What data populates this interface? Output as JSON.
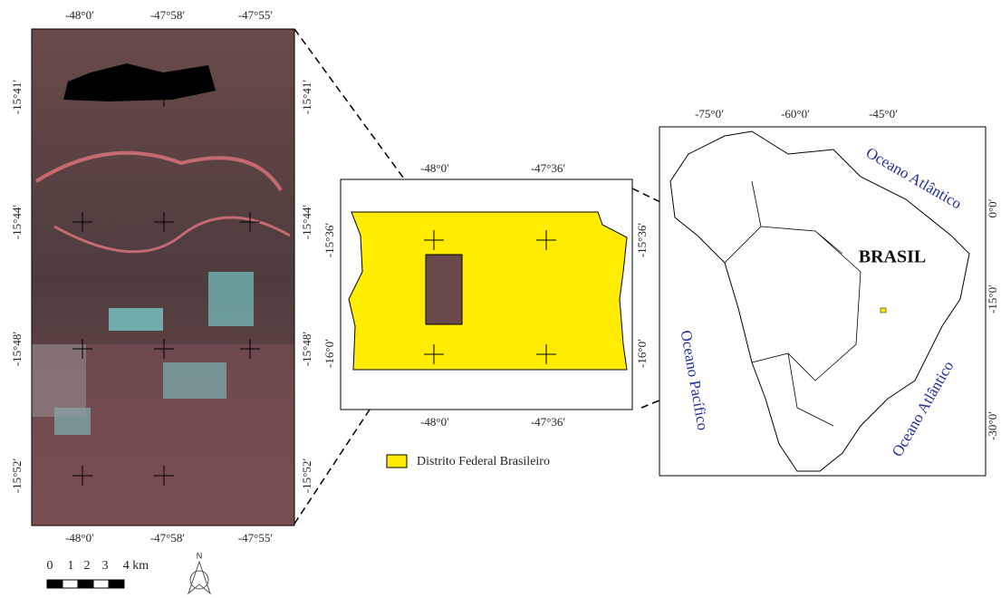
{
  "satellite_panel": {
    "top_labels": [
      "-48°0′",
      "-47°58′",
      "-47°55′"
    ],
    "bottom_labels": [
      "-48°0′",
      "-47°58′",
      "-47°55′"
    ],
    "left_labels": [
      "-15°41′",
      "-15°44′",
      "-15°48′",
      "-15°52′"
    ],
    "right_labels": [
      "-15°41′",
      "-15°44′",
      "-15°48′",
      "-15°52′"
    ]
  },
  "scale_bar": {
    "labels": [
      "0",
      "1",
      "2",
      "3",
      "4 km"
    ]
  },
  "north_arrow": {
    "label": "N"
  },
  "district_panel": {
    "top_labels": [
      "-48°0′",
      "-47°36′"
    ],
    "bottom_labels": [
      "-48°0′",
      "-47°36′"
    ],
    "left_labels": [
      "-15°36′",
      "-16°0′"
    ],
    "right_labels": [
      "-15°36′",
      "-16°0′"
    ]
  },
  "legend": {
    "label": "Distrito Federal Brasileiro"
  },
  "south_america_panel": {
    "top_labels": [
      "-75°0′",
      "-60°0′",
      "-45°0′"
    ],
    "right_labels": [
      "0°0′",
      "-15°0′",
      "-30°0′"
    ],
    "country_label": "BRASIL",
    "ocean_labels": [
      "Oceano Atlântico",
      "Oceano Pacífico",
      "Oceano Atlântico"
    ]
  }
}
